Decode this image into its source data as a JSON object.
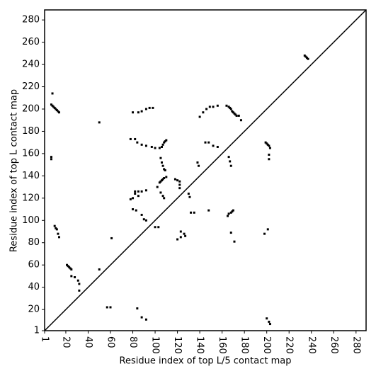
{
  "chart_data": {
    "type": "scatter",
    "xlabel": "Residue index of top L/5 contact map",
    "ylabel": "Residue index of top L contact map",
    "xlim": [
      1,
      289
    ],
    "ylim": [
      1,
      289
    ],
    "xticks": [
      1,
      20,
      40,
      60,
      80,
      100,
      120,
      140,
      160,
      180,
      200,
      220,
      240,
      260,
      280
    ],
    "yticks": [
      1,
      20,
      40,
      60,
      80,
      100,
      120,
      140,
      160,
      180,
      200,
      220,
      240,
      260,
      280
    ],
    "diagonal": true,
    "color": "#000000",
    "x": [
      7,
      8,
      9,
      10,
      11,
      12,
      13,
      14,
      8,
      10,
      11,
      12,
      13,
      14,
      21,
      22,
      23,
      24,
      25,
      25,
      28,
      31,
      32,
      32,
      50,
      50,
      57,
      60,
      61,
      84,
      88,
      92,
      80,
      85,
      88,
      92,
      95,
      98,
      104,
      106,
      107,
      108,
      109,
      110,
      105,
      106,
      107,
      108,
      109,
      104,
      105,
      106,
      107,
      108,
      110,
      102,
      105,
      107,
      108,
      80,
      82,
      82,
      85,
      85,
      88,
      92,
      78,
      80,
      83,
      88,
      90,
      92,
      100,
      103,
      78,
      82,
      84,
      88,
      92,
      97,
      100,
      118,
      120,
      122,
      122,
      122,
      123,
      123,
      126,
      127,
      120,
      130,
      131,
      132,
      135,
      138,
      139,
      140,
      143,
      146,
      149,
      152,
      156,
      145,
      148,
      152,
      156,
      148,
      164,
      166,
      167,
      168,
      169,
      170,
      171,
      172,
      173,
      175,
      177,
      166,
      167,
      168,
      165,
      166,
      168,
      169,
      170,
      168,
      171,
      199,
      200,
      201,
      202,
      203,
      202,
      202,
      198,
      201,
      200,
      202,
      203,
      234,
      235,
      236,
      237,
      7,
      7
    ],
    "y": [
      204,
      203,
      202,
      201,
      200,
      199,
      198,
      197,
      214,
      95,
      93,
      92,
      88,
      85,
      60,
      59,
      58,
      57,
      56,
      50,
      49,
      46,
      43,
      37,
      56,
      188,
      22,
      22,
      84,
      21,
      13,
      11,
      197,
      197,
      198,
      200,
      201,
      201,
      165,
      166,
      168,
      170,
      171,
      172,
      156,
      152,
      149,
      146,
      145,
      134,
      135,
      136,
      137,
      138,
      139,
      130,
      125,
      122,
      120,
      120,
      124,
      126,
      126,
      122,
      126,
      127,
      119,
      110,
      109,
      105,
      101,
      100,
      94,
      94,
      173,
      173,
      170,
      168,
      167,
      166,
      165,
      137,
      136,
      135,
      132,
      129,
      90,
      85,
      88,
      86,
      83,
      124,
      121,
      107,
      107,
      152,
      149,
      193,
      197,
      200,
      202,
      202,
      203,
      170,
      170,
      167,
      166,
      109,
      203,
      202,
      201,
      200,
      198,
      197,
      196,
      195,
      194,
      194,
      190,
      157,
      153,
      149,
      104,
      106,
      107,
      108,
      109,
      89,
      81,
      170,
      169,
      168,
      167,
      165,
      159,
      155,
      88,
      92,
      12,
      9,
      7,
      248,
      247,
      246,
      245,
      155,
      157
    ]
  }
}
